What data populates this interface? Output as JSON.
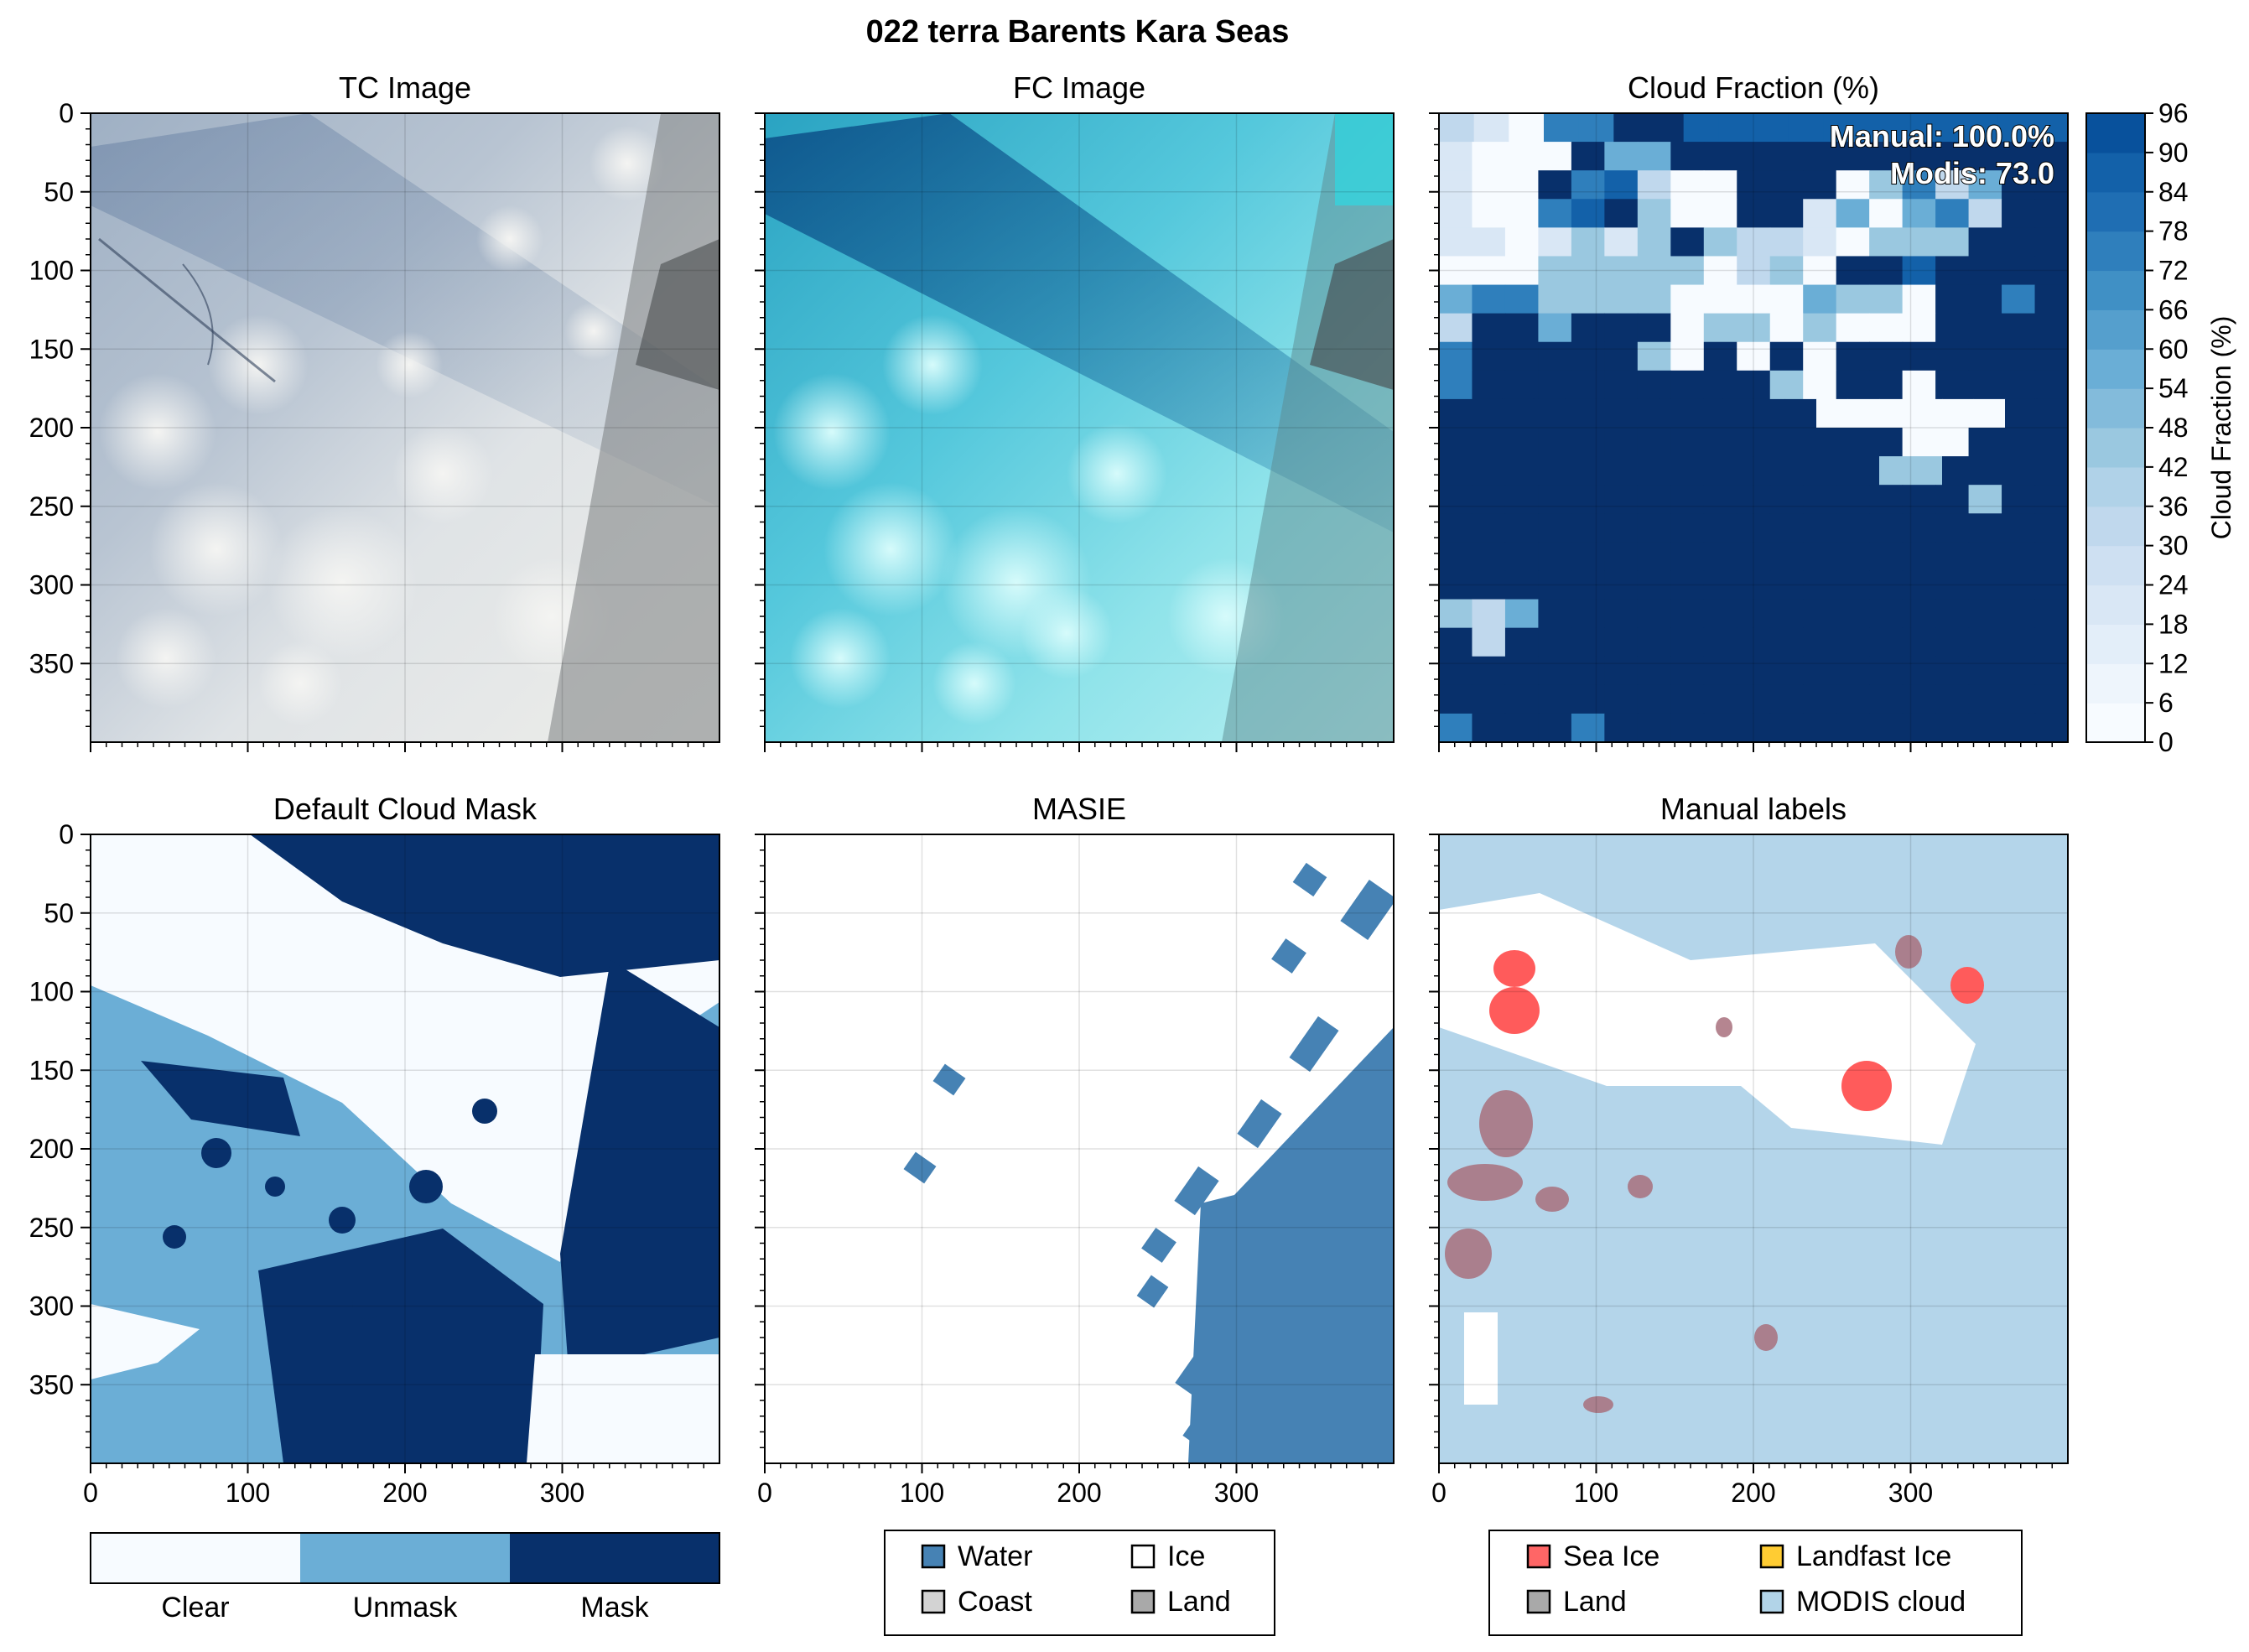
{
  "chart_data": {
    "suptitle": "022 terra Barents Kara Seas",
    "x_ticks": [
      "0",
      "100",
      "200",
      "300"
    ],
    "y_ticks": [
      "0",
      "50",
      "100",
      "150",
      "200",
      "250",
      "300",
      "350"
    ],
    "panels": [
      {
        "id": "tc",
        "title": "TC Image",
        "type": "image"
      },
      {
        "id": "fc",
        "title": "FC Image",
        "type": "image"
      },
      {
        "id": "cf",
        "title": "Cloud Fraction (%)",
        "type": "heatmap",
        "colorbar": {
          "label": "Cloud Fraction (%)",
          "ticks": [
            "0",
            "6",
            "12",
            "18",
            "24",
            "30",
            "36",
            "42",
            "48",
            "54",
            "60",
            "66",
            "72",
            "78",
            "84",
            "90",
            "96"
          ],
          "colors": [
            "#f7fbff",
            "#eef5fc",
            "#e3eef9",
            "#d9e7f5",
            "#cee0f2",
            "#c0d8ed",
            "#b0d2e8",
            "#9ac8e0",
            "#83bbdb",
            "#6aaed6",
            "#559fcd",
            "#4090c5",
            "#2f7fbc",
            "#1f6eb3",
            "#1361a9",
            "#08519c",
            "#08306b"
          ]
        },
        "annotations": [
          "Manual: 100.0%",
          "Modis: 73.0"
        ],
        "grid": [
          "BA.EEFF99999999999",
          "A...FDDFFFFFFFFFFFF",
          "A..FE9B..FFF.CEBDFF",
          "A..E96C..FFAD.DEBFF",
          "AA.ACACFCBBA.CCCFFF",
          "...CCCCC.BC.FF9FFFF",
          "DEECCCC....DCC.FFEF",
          "BFFDFFF.CC.C...FFFF",
          "EFFFFFC.F.F.FFFFFFF",
          "EFFFFFFFFFC.FF.FFFF",
          "FFFFFFFFFFFF......FF",
          "FFFFFFFFFFFFFF..FFF",
          "FFFFFFFFFFFFFFCCFFFF",
          "FFFFFFFFFFFFFFFFCFF",
          "FFFFFFFFFFFFFFFFFFF",
          "FFFFFFFFFFFFFFFFFFF",
          "FFFFFFFFFFFFFFFFFFF",
          "CBDFFFFFFFFFFFFFFFF",
          "FBFFFFFFFFFFFFFFFFF",
          "FFFFFFFFFFFFFFFFFFF",
          "FFFFFFFFFFFFFFFFFFF",
          "EFFFEFFFFFFFFFFFFFF"
        ]
      },
      {
        "id": "dcm",
        "title": "Default Cloud Mask",
        "type": "categorical-map",
        "categories": [
          "Clear",
          "Unmask",
          "Mask"
        ],
        "colors": [
          "#f7fbff",
          "#6baed6",
          "#08306b"
        ]
      },
      {
        "id": "masie",
        "title": "MASIE",
        "type": "categorical-map",
        "legend": [
          {
            "label": "Water",
            "color": "#4682b4"
          },
          {
            "label": "Ice",
            "color": "#ffffff"
          },
          {
            "label": "Coast",
            "color": "#d3d3d3"
          },
          {
            "label": "Land",
            "color": "#a9a9a9"
          }
        ]
      },
      {
        "id": "ml",
        "title": "Manual labels",
        "type": "categorical-map",
        "legend": [
          {
            "label": "Sea Ice",
            "color": "#ff6666"
          },
          {
            "label": "Landfast Ice",
            "color": "#ffcc33"
          },
          {
            "label": "Land",
            "color": "#a9a9a9"
          },
          {
            "label": "MODIS cloud",
            "color": "#b2d4e8"
          }
        ]
      }
    ],
    "x_range": [
      0,
      400
    ],
    "y_range": [
      400,
      0
    ]
  }
}
